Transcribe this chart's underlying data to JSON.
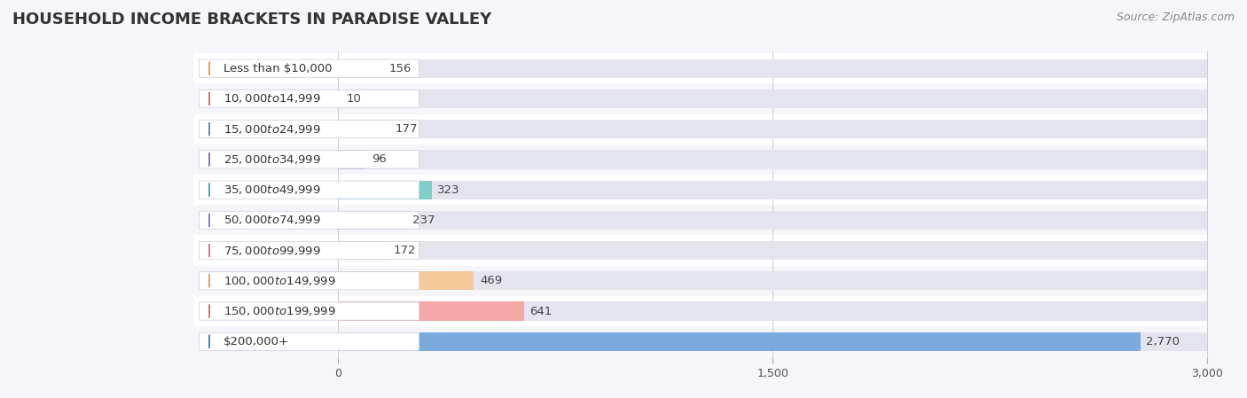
{
  "title": "HOUSEHOLD INCOME BRACKETS IN PARADISE VALLEY",
  "source": "Source: ZipAtlas.com",
  "categories": [
    "Less than $10,000",
    "$10,000 to $14,999",
    "$15,000 to $24,999",
    "$25,000 to $34,999",
    "$35,000 to $49,999",
    "$50,000 to $74,999",
    "$75,000 to $99,999",
    "$100,000 to $149,999",
    "$150,000 to $199,999",
    "$200,000+"
  ],
  "values": [
    156,
    10,
    177,
    96,
    323,
    237,
    172,
    469,
    641,
    2770
  ],
  "bar_colors": [
    "#f5c99a",
    "#f4a8a8",
    "#a8c4e0",
    "#c9b8e8",
    "#7ecfca",
    "#b8b8e8",
    "#f7a8c0",
    "#f5c99a",
    "#f4a8a8",
    "#7aabdc"
  ],
  "dot_colors": [
    "#e8a050",
    "#e07070",
    "#6090c0",
    "#9070c0",
    "#40b0a8",
    "#8080c8",
    "#e870a0",
    "#e8a050",
    "#e07070",
    "#4488cc"
  ],
  "xlim_data": [
    0,
    3000
  ],
  "xticks": [
    0,
    1500,
    3000
  ],
  "xticklabels": [
    "0",
    "1,500",
    "3,000"
  ],
  "bg_even": "#f5f5fa",
  "bg_odd": "#ffffff",
  "bar_bg_color": "#e4e4ef",
  "title_fontsize": 13,
  "label_fontsize": 9.5,
  "value_fontsize": 9.5,
  "source_fontsize": 9
}
